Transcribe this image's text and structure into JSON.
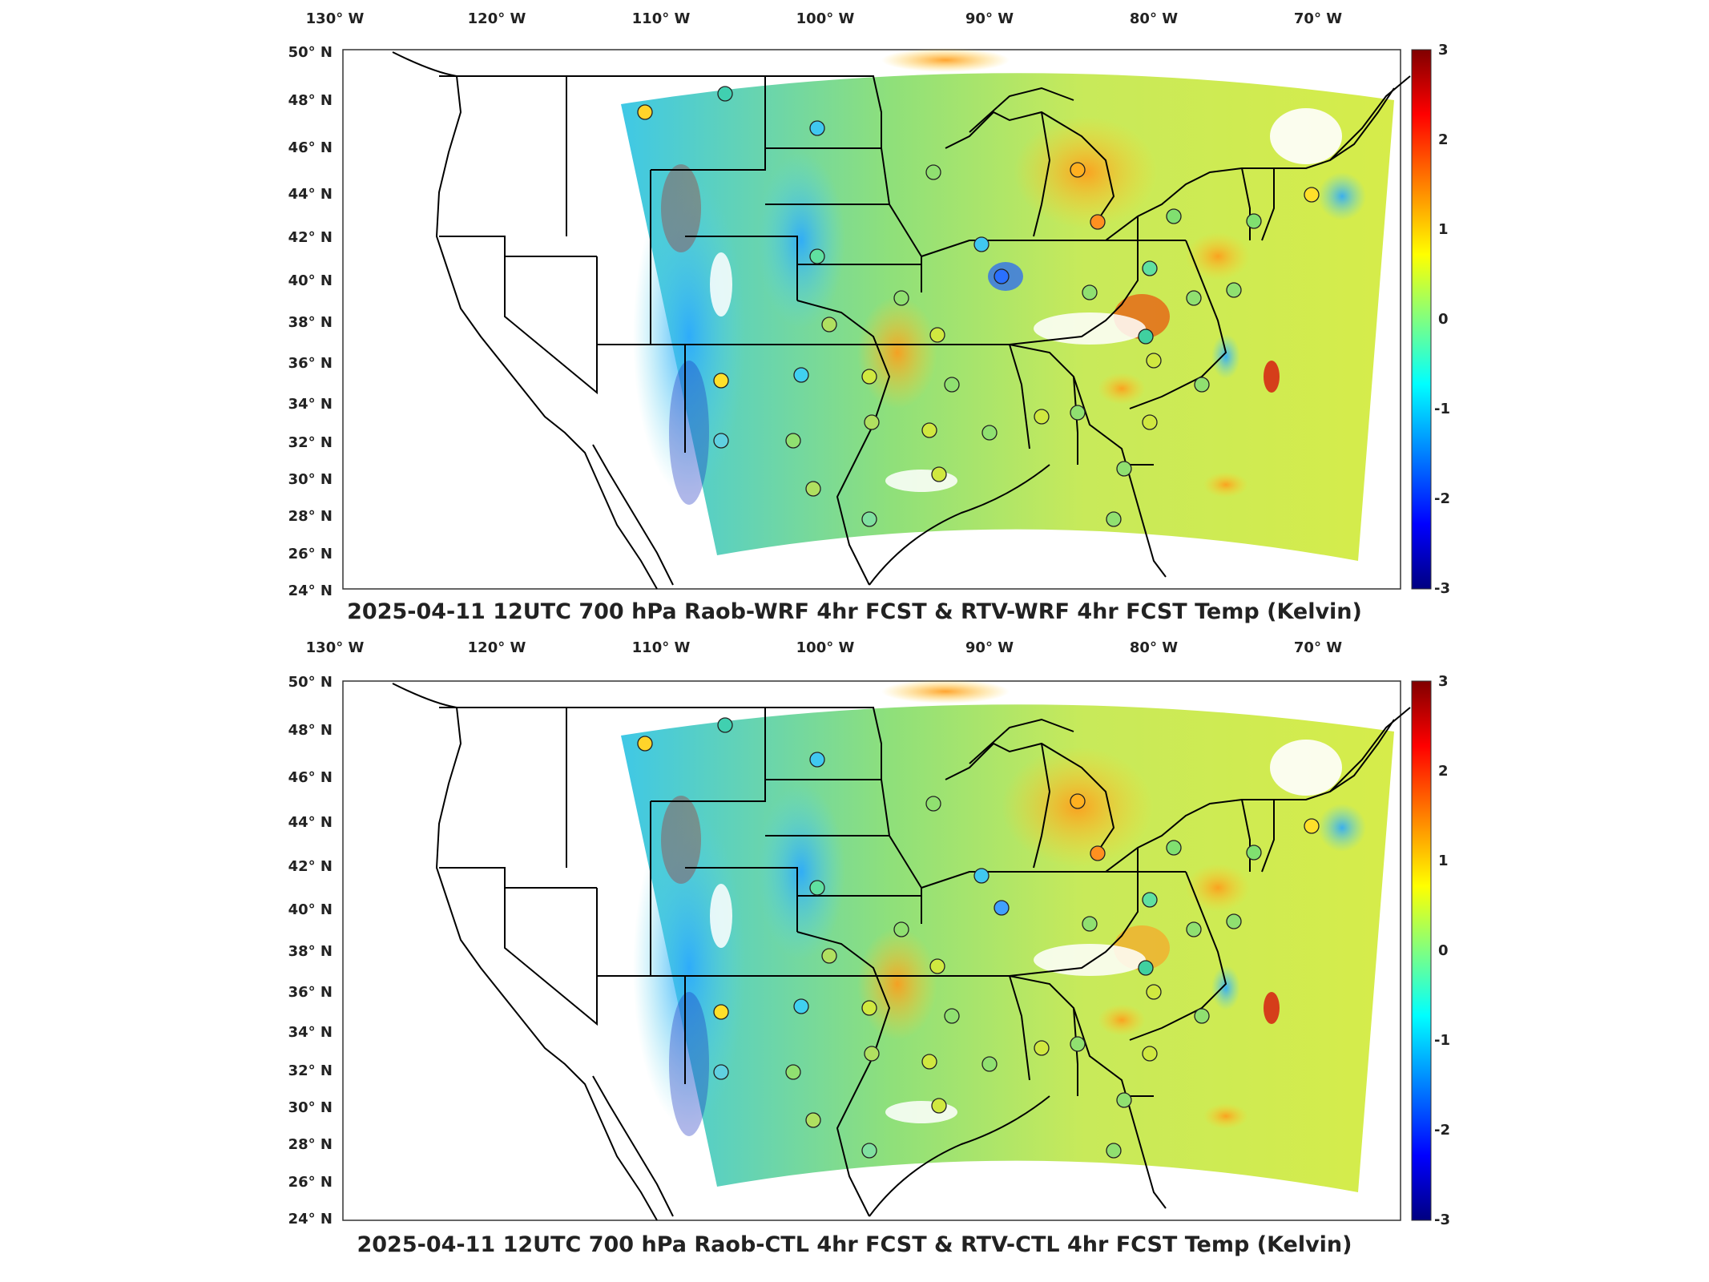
{
  "panels": [
    {
      "id": "top",
      "title": "2025-04-11 12UTC 700 hPa Raob-WRF 4hr FCST & RTV-WRF 4hr FCST Temp (Kelvin)"
    },
    {
      "id": "bottom",
      "title": "2025-04-11 12UTC 700 hPa Raob-CTL 4hr FCST & RTV-CTL 4hr FCST Temp (Kelvin)"
    }
  ],
  "lon_labels": [
    "130° W",
    "120° W",
    "110° W",
    "100° W",
    "90° W",
    "80° W",
    "70° W"
  ],
  "lat_labels": [
    "50° N",
    "48° N",
    "46° N",
    "44° N",
    "42° N",
    "40° N",
    "38° N",
    "36° N",
    "34° N",
    "32° N",
    "30° N",
    "28° N",
    "26° N",
    "24° N"
  ],
  "colorbar": {
    "ticks": [
      "3",
      "2",
      "1",
      "0",
      "-1",
      "-2",
      "-3"
    ],
    "colors": [
      "#800000",
      "#ff0000",
      "#ff8000",
      "#ffff00",
      "#80ff80",
      "#00ffff",
      "#0080ff",
      "#0000ff",
      "#000080"
    ]
  }
}
